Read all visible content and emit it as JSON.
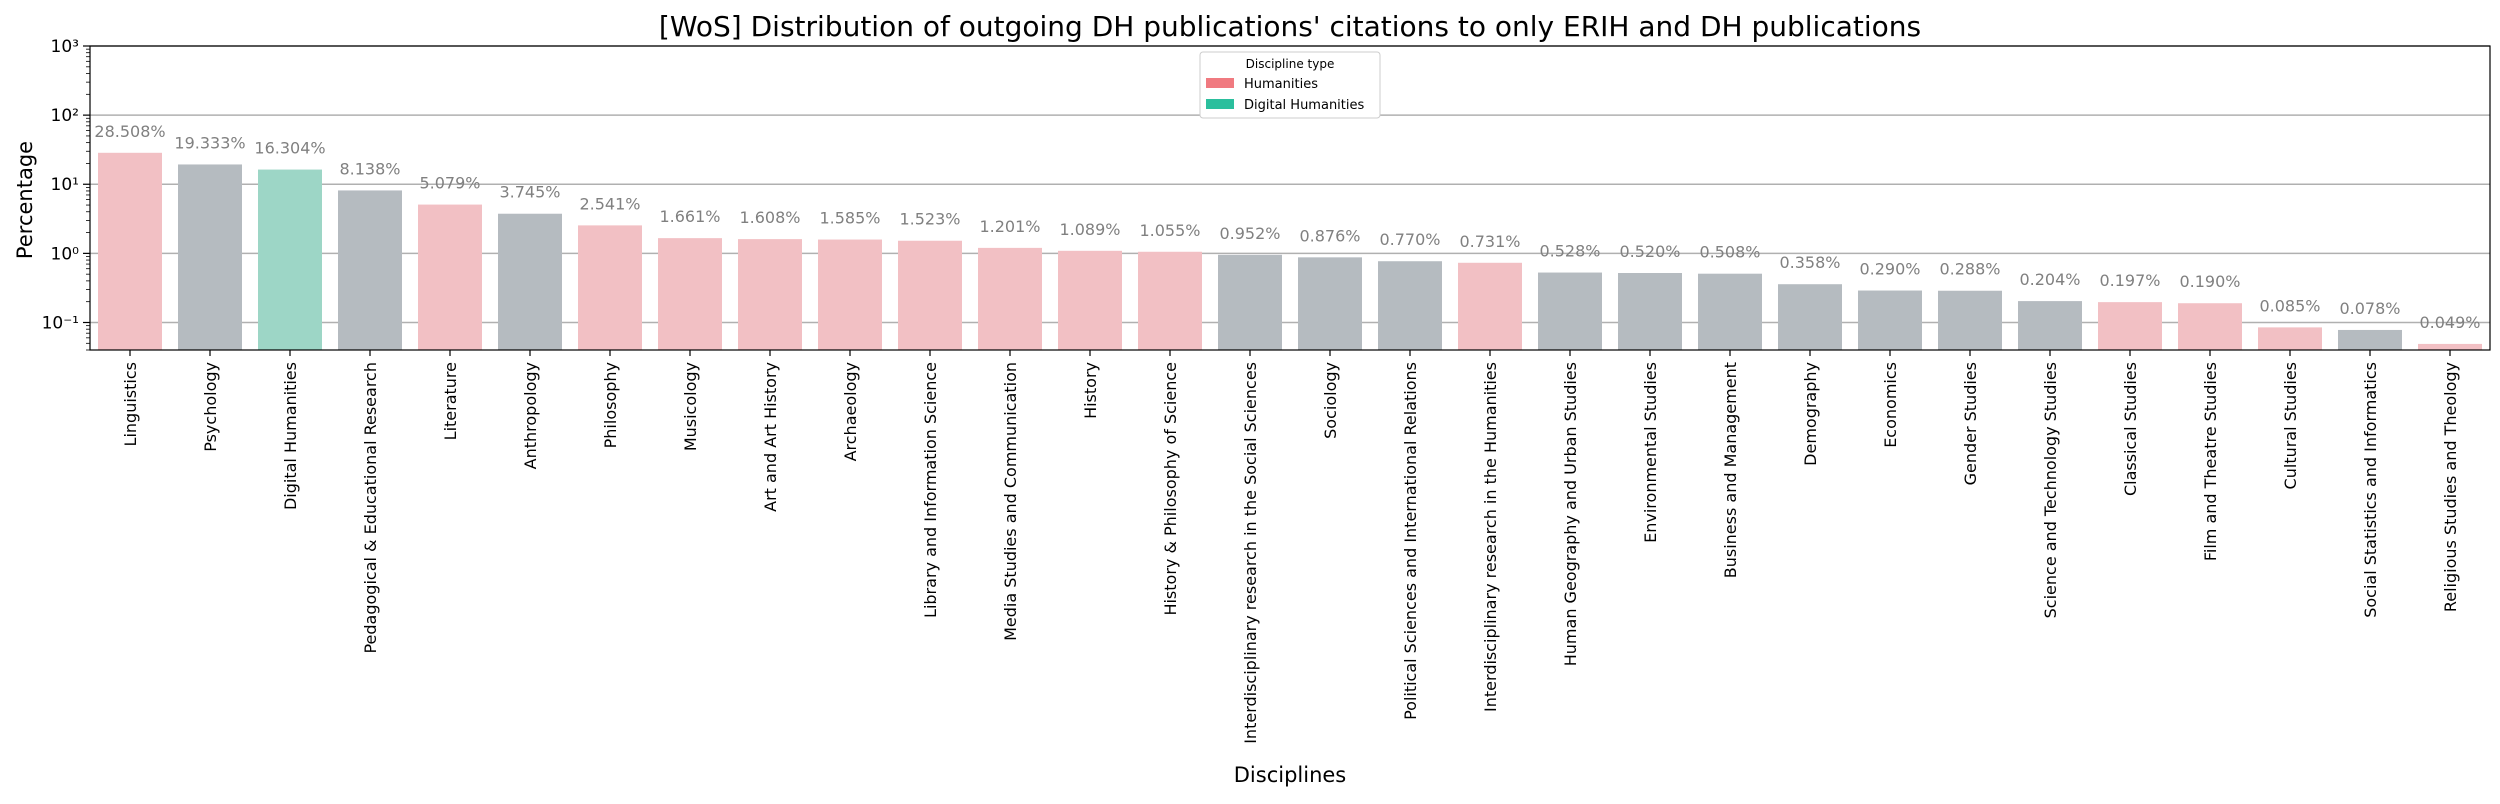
{
  "chart_data": {
    "type": "bar",
    "title": "[WoS] Distribution of outgoing DH publications' citations to only ERIH and DH publications",
    "xlabel": "Disciplines",
    "ylabel": "Percentage",
    "yscale": "log",
    "ylim": [
      0.04,
      1000
    ],
    "yticks": [
      0.1,
      1,
      10,
      100,
      1000
    ],
    "ytick_labels": [
      "10⁻¹",
      "10⁰",
      "10¹",
      "10²",
      "10³"
    ],
    "grid": "horizontal",
    "legend": {
      "title": "Discipline type",
      "position": "top-center",
      "entries": [
        {
          "label": "Humanities",
          "color": "#f07a80"
        },
        {
          "label": "Digital Humanities",
          "color": "#2bbf9d"
        }
      ]
    },
    "colors": {
      "Humanities": "#f2c0c4",
      "Digital Humanities": "#9dd6c6",
      "Other": "#b5bbc0",
      "value_label": "#808080"
    },
    "categories": [
      "Linguistics",
      "Psychology",
      "Digital Humanities",
      "Pedagogical & Educational Research",
      "Literature",
      "Anthropology",
      "Philosophy",
      "Musicology",
      "Art and Art History",
      "Archaeology",
      "Library and Information Science",
      "Media Studies and Communication",
      "History",
      "History & Philosophy of Science",
      "Interdisciplinary research in the Social Sciences",
      "Sociology",
      "Political Sciences and International Relations",
      "Interdisciplinary research in the Humanities",
      "Human Geography and Urban Studies",
      "Environmental Studies",
      "Business and Management",
      "Demography",
      "Economics",
      "Gender Studies",
      "Science and Technology Studies",
      "Classical Studies",
      "Film and Theatre Studies",
      "Cultural Studies",
      "Social Statistics and Informatics",
      "Religious Studies and Theology"
    ],
    "values": [
      28.508,
      19.333,
      16.304,
      8.138,
      5.079,
      3.745,
      2.541,
      1.661,
      1.608,
      1.585,
      1.523,
      1.201,
      1.089,
      1.055,
      0.952,
      0.876,
      0.77,
      0.731,
      0.528,
      0.52,
      0.508,
      0.358,
      0.29,
      0.288,
      0.204,
      0.197,
      0.19,
      0.085,
      0.078,
      0.049
    ],
    "value_labels": [
      "28.508%",
      "19.333%",
      "16.304%",
      "8.138%",
      "5.079%",
      "3.745%",
      "2.541%",
      "1.661%",
      "1.608%",
      "1.585%",
      "1.523%",
      "1.201%",
      "1.089%",
      "1.055%",
      "0.952%",
      "0.876%",
      "0.770%",
      "0.731%",
      "0.528%",
      "0.520%",
      "0.508%",
      "0.358%",
      "0.290%",
      "0.288%",
      "0.204%",
      "0.197%",
      "0.190%",
      "0.085%",
      "0.078%",
      "0.049%"
    ],
    "types": [
      "Humanities",
      "Other",
      "Digital Humanities",
      "Other",
      "Humanities",
      "Other",
      "Humanities",
      "Humanities",
      "Humanities",
      "Humanities",
      "Humanities",
      "Humanities",
      "Humanities",
      "Humanities",
      "Other",
      "Other",
      "Other",
      "Humanities",
      "Other",
      "Other",
      "Other",
      "Other",
      "Other",
      "Other",
      "Other",
      "Humanities",
      "Humanities",
      "Humanities",
      "Other",
      "Humanities"
    ]
  }
}
